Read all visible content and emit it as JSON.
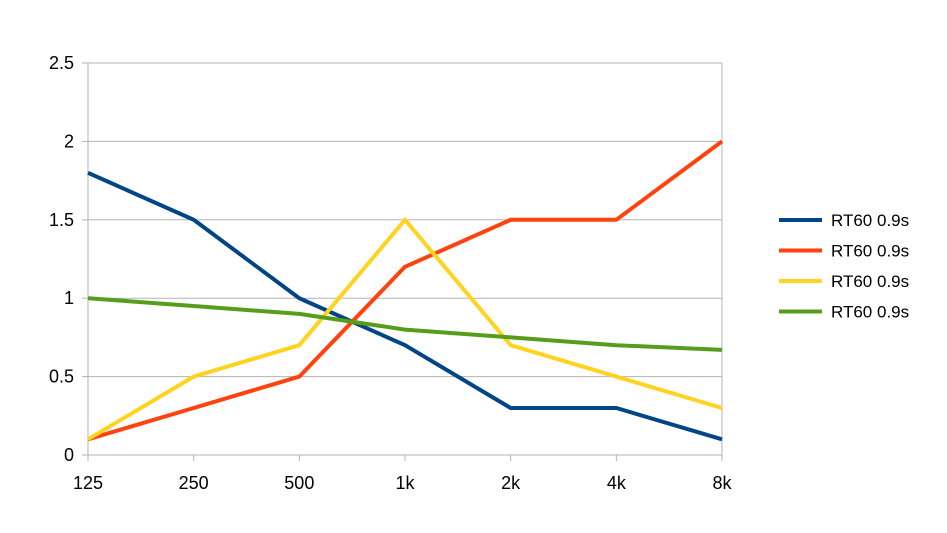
{
  "chart_data": {
    "type": "line",
    "title": "",
    "xlabel": "",
    "ylabel": "",
    "categories": [
      "125",
      "250",
      "500",
      "1k",
      "2k",
      "4k",
      "8k"
    ],
    "ylim": [
      0,
      2.5
    ],
    "y_ticks": [
      "0",
      "0.5",
      "1",
      "1.5",
      "2",
      "2.5"
    ],
    "grid": true,
    "legend_position": "right",
    "series": [
      {
        "name": "RT60 0.9s",
        "color": "#004586",
        "values": [
          1.8,
          1.5,
          1.0,
          0.7,
          0.3,
          0.3,
          0.1
        ]
      },
      {
        "name": "RT60 0.9s",
        "color": "#ff420e",
        "values": [
          0.1,
          0.3,
          0.5,
          1.2,
          1.5,
          1.5,
          2.0
        ]
      },
      {
        "name": "RT60 0.9s",
        "color": "#ffd320",
        "values": [
          0.1,
          0.5,
          0.7,
          1.5,
          0.7,
          0.5,
          0.3
        ]
      },
      {
        "name": "RT60 0.9s",
        "color": "#579d1c",
        "values": [
          1.0,
          0.95,
          0.9,
          0.8,
          0.75,
          0.7,
          0.67
        ]
      }
    ]
  }
}
